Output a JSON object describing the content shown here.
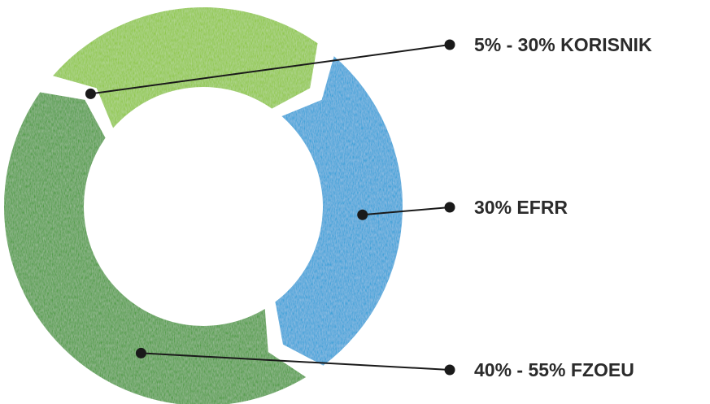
{
  "chart_data": {
    "type": "pie",
    "donut": true,
    "categories": [
      "5% - 30% KORISNIK",
      "30% EFRR",
      "40% - 55% FZOEU"
    ],
    "values": [
      25,
      30,
      45
    ],
    "colors": [
      "#8cc63f",
      "#2e9fd8",
      "#4a9a3e"
    ],
    "title": "",
    "legend_position": "right"
  }
}
